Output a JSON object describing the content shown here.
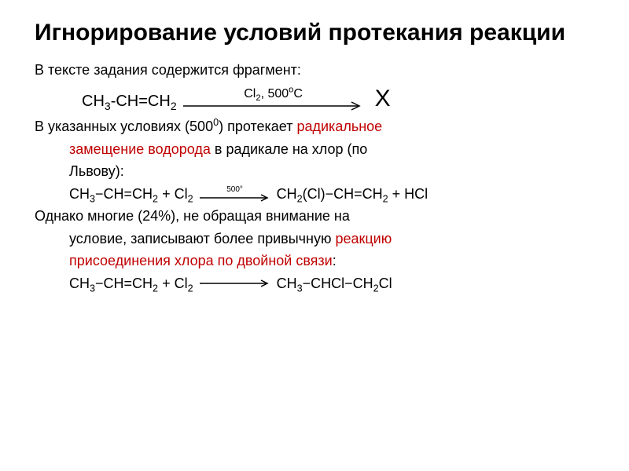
{
  "colors": {
    "text": "#000000",
    "accent": "#c00000",
    "background": "#ffffff",
    "arrow": "#000000"
  },
  "title": "Игнорирование условий протекания реакции",
  "intro": "В тексте задания содержится фрагмент:",
  "arrow_lhs_html": "CH<span class='sub'>3</span>-CH=CH<span class='sub'>2</span>",
  "arrow_label_html": "Cl<span class='sub'>2</span>, 500<span class='sup'>o</span>C",
  "arrow_rhs": "X",
  "p2_a": "В указанных условиях (500",
  "p2_sup": "0",
  "p2_b": ") протекает ",
  "p2_red": "радикальное",
  "p2_line2": "замещение водорода",
  "p2_tail": " в радикале на хлор (по",
  "p2_line3": "Львову):",
  "eq1_lhs_html": "CH<span class='sub'>3</span>−CH=CH<span class='sub'>2</span> + Cl<span class='sub'>2</span>",
  "eq1_cond_html": "500°",
  "eq1_rhs_html": "CH<span class='sub'>2</span>(Cl)−CH=CH<span class='sub'>2</span> + HCl",
  "p3_a": "Однако многие (24%), не обращая внимание на",
  "p3_b": "условие, записывают более привычную ",
  "p3_red": "реакцию",
  "p3_line2": "присоединения хлора по двойной связи",
  "p3_tail": ":",
  "eq2_lhs_html": "CH<span class='sub'>3</span>−CH=CH<span class='sub'>2</span> + Cl<span class='sub'>2</span>",
  "eq2_rhs_html": "CH<span class='sub'>3</span>−CHCl−CH<span class='sub'>2</span>Cl",
  "arrow": {
    "long_width": 230,
    "short_width": 90,
    "height": 14,
    "stroke": "#000000",
    "stroke_width": 1.5
  }
}
